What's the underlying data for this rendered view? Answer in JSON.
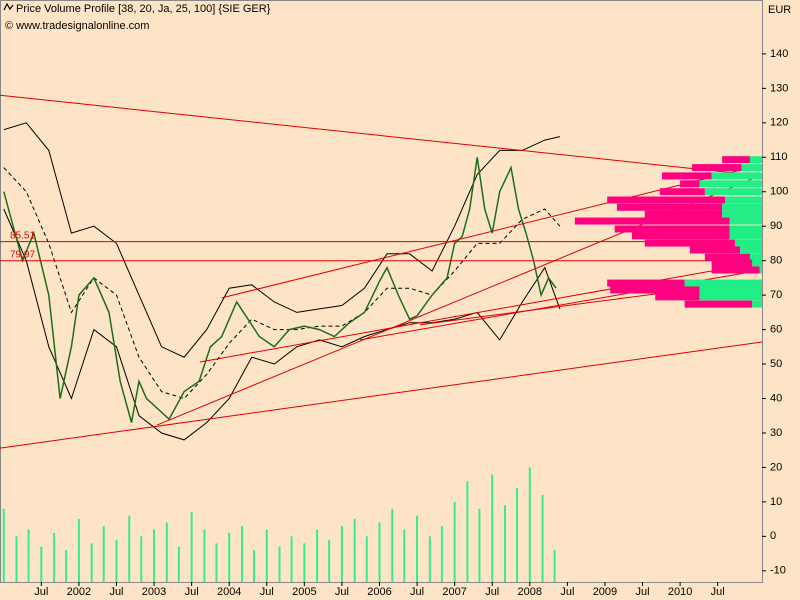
{
  "chart_data": {
    "type": "price-volume-profile",
    "title": "Price Volume Profile [38, 20, Ja, 25, 100] {SIE GER}",
    "subtitle": "© www.tradesignalonline.com",
    "y_axis_label": "EUR",
    "xlim": [
      2000.95,
      2011.09
    ],
    "xticks": [
      {
        "value": 2001.5,
        "label": "Jul"
      },
      2002,
      {
        "value": 2002.5,
        "label": "Jul"
      },
      2003,
      {
        "value": 2003.5,
        "label": "Jul"
      },
      2004,
      {
        "value": 2004.5,
        "label": "Jul"
      },
      2005,
      {
        "value": 2005.5,
        "label": "Jul"
      },
      2006,
      {
        "value": 2006.5,
        "label": "Jul"
      },
      2007,
      {
        "value": 2007.5,
        "label": "Jul"
      },
      2008,
      {
        "value": 2008.5,
        "label": "Jul"
      },
      2009,
      {
        "value": 2009.5,
        "label": "Jul"
      },
      2010,
      {
        "value": 2010.5,
        "label": "Jul"
      }
    ],
    "ylim": [
      -13.25,
      151
    ],
    "yticks": [
      -10,
      0,
      10,
      20,
      30,
      40,
      50,
      60,
      70,
      80,
      90,
      100,
      110,
      120,
      130,
      140
    ],
    "price": {
      "color": "#1a6e1a",
      "x": [
        2001.0,
        2001.25,
        2001.4,
        2001.6,
        2001.75,
        2001.9,
        2002.0,
        2002.2,
        2002.4,
        2002.55,
        2002.7,
        2002.8,
        2002.9,
        2003.0,
        2003.2,
        2003.4,
        2003.6,
        2003.75,
        2003.9,
        2004.0,
        2004.1,
        2004.25,
        2004.4,
        2004.6,
        2004.8,
        2005.0,
        2005.2,
        2005.4,
        2005.6,
        2005.8,
        2006.0,
        2006.1,
        2006.25,
        2006.4,
        2006.5,
        2006.7,
        2006.9,
        2007.0,
        2007.1,
        2007.2,
        2007.3,
        2007.4,
        2007.5,
        2007.6,
        2007.75,
        2007.85,
        2007.95,
        2008.05,
        2008.15,
        2008.25,
        2008.35
      ],
      "values": [
        100,
        80,
        88,
        70,
        40,
        55,
        70,
        75,
        65,
        45,
        33,
        45,
        40,
        38,
        34,
        42,
        45,
        55,
        58,
        63,
        68,
        63,
        58,
        55,
        60,
        61,
        60,
        58,
        62,
        65,
        74,
        78,
        70,
        63,
        64,
        70,
        75,
        85,
        87,
        95,
        110,
        95,
        88,
        100,
        107,
        95,
        88,
        80,
        70,
        75,
        72
      ]
    },
    "bands": {
      "color": "#000000",
      "x": [
        2001.0,
        2001.3,
        2001.6,
        2001.9,
        2002.2,
        2002.5,
        2002.8,
        2003.1,
        2003.4,
        2003.7,
        2004.0,
        2004.3,
        2004.6,
        2004.9,
        2005.2,
        2005.5,
        2005.8,
        2006.1,
        2006.4,
        2006.7,
        2007.0,
        2007.3,
        2007.6,
        2007.9,
        2008.2,
        2008.4
      ],
      "upper": [
        118,
        120,
        112,
        88,
        90,
        85,
        70,
        55,
        52,
        60,
        72,
        73,
        68,
        65,
        66,
        67,
        72,
        82,
        82,
        77,
        90,
        105,
        112,
        112,
        115,
        116
      ],
      "middle": [
        107,
        100,
        85,
        65,
        75,
        70,
        52,
        42,
        40,
        47,
        56,
        63,
        60,
        60,
        61,
        61,
        65,
        72,
        72,
        70,
        77,
        85,
        85,
        92,
        95,
        90
      ],
      "lower": [
        95,
        80,
        55,
        40,
        60,
        55,
        35,
        30,
        28,
        33,
        40,
        52,
        50,
        55,
        57,
        55,
        58,
        60,
        62,
        62,
        63,
        65,
        57,
        68,
        78,
        66
      ]
    },
    "volume": {
      "color": "#33ee88",
      "x": [
        2001.0,
        2001.17,
        2001.33,
        2001.5,
        2001.67,
        2001.83,
        2002.0,
        2002.17,
        2002.33,
        2002.5,
        2002.67,
        2002.83,
        2003.0,
        2003.17,
        2003.33,
        2003.5,
        2003.67,
        2003.83,
        2004.0,
        2004.17,
        2004.33,
        2004.5,
        2004.67,
        2004.83,
        2005.0,
        2005.17,
        2005.33,
        2005.5,
        2005.67,
        2005.83,
        2006.0,
        2006.17,
        2006.33,
        2006.5,
        2006.67,
        2006.83,
        2007.0,
        2007.17,
        2007.33,
        2007.5,
        2007.67,
        2007.83,
        2008.0,
        2008.17,
        2008.33
      ],
      "values": [
        8,
        0,
        2,
        -3,
        1,
        -4,
        5,
        -2,
        3,
        -1,
        6,
        0,
        2,
        4,
        -3,
        7,
        2,
        -2,
        1,
        3,
        -4,
        2,
        -3,
        0,
        -2,
        2,
        -1,
        3,
        5,
        0,
        4,
        8,
        2,
        6,
        0,
        3,
        10,
        16,
        8,
        18,
        9,
        14,
        20,
        12,
        -4
      ]
    },
    "profile": {
      "pink": "#ff0080",
      "green": "#22ee88",
      "levels": [
        109.3,
        107,
        104.6,
        102.3,
        100,
        97.6,
        95.5,
        93.5,
        91.5,
        89.2,
        87.2,
        85.1,
        83.1,
        81,
        79.3,
        77.3,
        73.5,
        71.5,
        69.5,
        67.4
      ],
      "pink_start": [
        2010.56,
        2010.16,
        2009.76,
        2010.0,
        2009.73,
        2009.03,
        2009.16,
        2009.53,
        2008.6,
        2009.13,
        2009.36,
        2009.53,
        2010.13,
        2010.33,
        2010.42,
        2010.42,
        2009.03,
        2009.07,
        2009.67,
        2010.06
      ],
      "green_start": [
        2010.93,
        2010.82,
        2010.42,
        2010.26,
        2010.33,
        2010.6,
        2010.56,
        2010.56,
        2010.66,
        2010.66,
        2010.66,
        2010.73,
        2010.8,
        2010.93,
        2010.96,
        2011.06,
        2010.06,
        2010.26,
        2010.26,
        2010.96
      ]
    },
    "trendline_color": "#e00000",
    "hlines": [
      85.51,
      79.97
    ],
    "trendlines": [
      {
        "x": [
          2000.95,
          2011.09
        ],
        "y": [
          128,
          104.6
        ]
      },
      {
        "x": [
          2000.95,
          2011.09
        ],
        "y": [
          25.6,
          56.4
        ]
      },
      {
        "x": [
          2003.04,
          2011.09
        ],
        "y": [
          32.3,
          104.9
        ]
      },
      {
        "x": [
          2003.61,
          2011.09
        ],
        "y": [
          50.6,
          79.6
        ]
      },
      {
        "x": [
          2003.9,
          2011.09
        ],
        "y": [
          69.2,
          107.8
        ]
      },
      {
        "x": [
          2005.74,
          2011.09
        ],
        "y": [
          57,
          77.3
        ]
      },
      {
        "x": [
          2006.54,
          2011.09
        ],
        "y": [
          61.4,
          74.4
        ]
      }
    ]
  }
}
